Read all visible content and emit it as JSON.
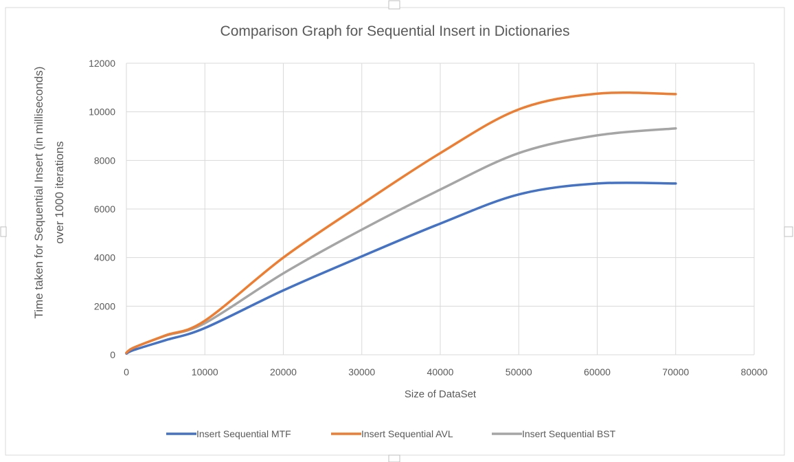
{
  "chart_data": {
    "type": "line",
    "title": "Comparison Graph for Sequential Insert in Dictionaries",
    "xlabel": "Size of DataSet",
    "ylabel_line1": "Time taken for Sequential Insert (in milliseconds)",
    "ylabel_line2": "over 1000 iterations",
    "xlim": [
      0,
      80000
    ],
    "ylim": [
      0,
      12000
    ],
    "x_ticks": [
      0,
      10000,
      20000,
      30000,
      40000,
      50000,
      60000,
      70000,
      80000
    ],
    "y_ticks": [
      0,
      2000,
      4000,
      6000,
      8000,
      10000,
      12000
    ],
    "x_tick_labels": [
      "0",
      "10000",
      "20000",
      "30000",
      "40000",
      "50000",
      "60000",
      "70000",
      "80000"
    ],
    "y_tick_labels": [
      "0",
      "2000",
      "4000",
      "6000",
      "8000",
      "10000",
      "12000"
    ],
    "grid": true,
    "legend_position": "bottom",
    "x": [
      0,
      1000,
      5000,
      10000,
      20000,
      30000,
      40000,
      50000,
      60000,
      70000
    ],
    "series": [
      {
        "name": "Insert Sequential MTF",
        "color": "#4472C4",
        "values": [
          50,
          200,
          600,
          1100,
          2650,
          4050,
          5400,
          6600,
          7050,
          7050
        ]
      },
      {
        "name": "Insert Sequential AVL",
        "color": "#ED7D31",
        "values": [
          80,
          300,
          800,
          1400,
          4000,
          6200,
          8300,
          10100,
          10750,
          10730
        ]
      },
      {
        "name": "Insert Sequential BST",
        "color": "#A5A5A5",
        "values": [
          80,
          300,
          780,
          1300,
          3350,
          5150,
          6800,
          8300,
          9030,
          9320
        ]
      }
    ]
  }
}
